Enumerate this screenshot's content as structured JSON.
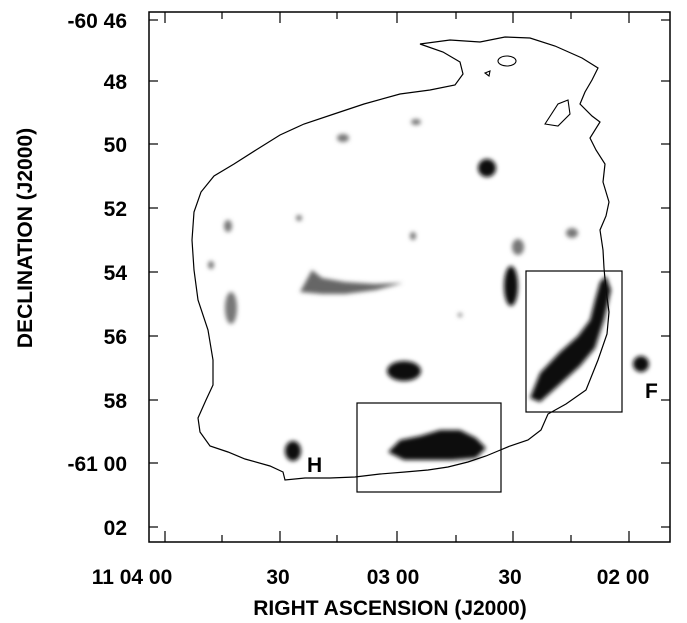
{
  "figure": {
    "x_axis_label": "RIGHT ASCENSION (J2000)",
    "y_axis_label": "DECLINATION (J2000)",
    "x_ticks": [
      "11 04 00",
      "30",
      "03 00",
      "30",
      "02 00"
    ],
    "y_ticks": [
      "-60 46",
      "48",
      "50",
      "52",
      "54",
      "56",
      "58",
      "-61 00",
      "02"
    ],
    "source_labels": [
      "H",
      "F"
    ]
  }
}
